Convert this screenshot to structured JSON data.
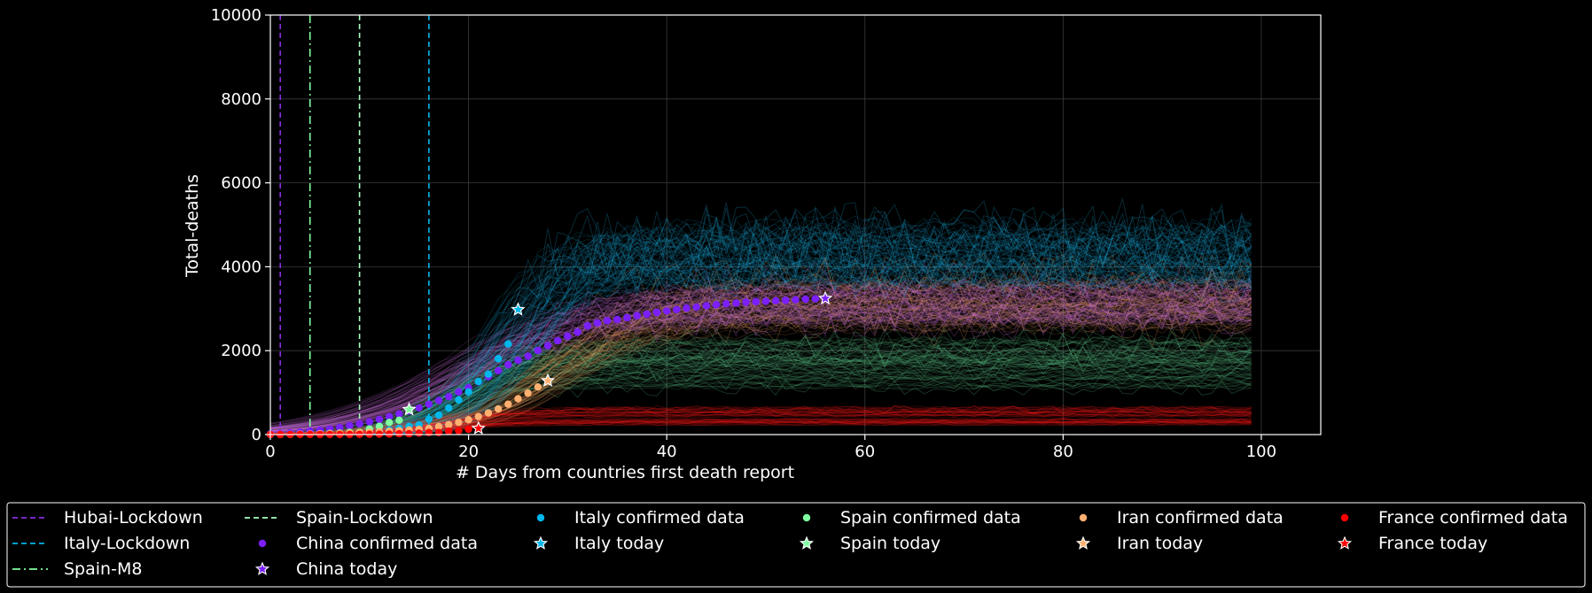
{
  "chart_data": {
    "type": "line",
    "xlabel": "# Days from countries first death report",
    "ylabel": "Total-deaths",
    "xlim": [
      0,
      106
    ],
    "ylim": [
      0,
      10000
    ],
    "x_ticks": [
      0,
      20,
      40,
      60,
      80,
      100
    ],
    "y_ticks": [
      0,
      2000,
      4000,
      6000,
      8000,
      10000
    ],
    "grid": true,
    "legend_placement": "bottom",
    "background": "#000000",
    "lockdowns": [
      {
        "name": "Hubai-Lockdown",
        "x": 1,
        "color": "#8a2be2",
        "dash": "dashed"
      },
      {
        "name": "Italy-Lockdown",
        "x": 16,
        "color": "#00b7eb",
        "dash": "dashed"
      },
      {
        "name": "Spain-M8",
        "x": 4,
        "color": "#7fffa0",
        "dash": "dashdot"
      },
      {
        "name": "Spain-Lockdown",
        "x": 9,
        "color": "#a8ffc0",
        "dash": "dashed"
      }
    ],
    "series": [
      {
        "name": "China confirmed data",
        "today_name": "China today",
        "color": "#7b1fff",
        "sim_color": "#d070e0",
        "plateau_range": [
          2700,
          3600
        ],
        "x": [
          0,
          1,
          2,
          3,
          4,
          5,
          6,
          7,
          8,
          9,
          10,
          11,
          12,
          13,
          14,
          15,
          16,
          17,
          18,
          19,
          20,
          21,
          22,
          23,
          24,
          25,
          26,
          27,
          28,
          29,
          30,
          31,
          32,
          33,
          34,
          35,
          36,
          37,
          38,
          39,
          40,
          41,
          42,
          43,
          44,
          45,
          46,
          47,
          48,
          49,
          50,
          51,
          52,
          53,
          54,
          55,
          56
        ],
        "values": [
          17,
          25,
          41,
          56,
          80,
          106,
          132,
          170,
          213,
          259,
          304,
          361,
          425,
          490,
          563,
          637,
          722,
          811,
          905,
          1016,
          1113,
          1259,
          1380,
          1523,
          1665,
          1770,
          1868,
          2004,
          2118,
          2236,
          2345,
          2442,
          2592,
          2663,
          2715,
          2744,
          2788,
          2835,
          2870,
          2912,
          2943,
          2981,
          3012,
          3042,
          3070,
          3097,
          3119,
          3136,
          3158,
          3169,
          3176,
          3189,
          3199,
          3213,
          3226,
          3237,
          3245
        ]
      },
      {
        "name": "Italy confirmed data",
        "today_name": "Italy today",
        "color": "#00b7eb",
        "sim_color": "#1aa8d8",
        "plateau_range": [
          3600,
          5000
        ],
        "x": [
          0,
          1,
          2,
          3,
          4,
          5,
          6,
          7,
          8,
          9,
          10,
          11,
          12,
          13,
          14,
          15,
          16,
          17,
          18,
          19,
          20,
          21,
          22,
          23,
          24,
          25
        ],
        "values": [
          1,
          2,
          3,
          7,
          10,
          12,
          17,
          21,
          29,
          34,
          52,
          79,
          107,
          148,
          197,
          233,
          366,
          463,
          631,
          827,
          1016,
          1266,
          1441,
          1809,
          2158,
          2978
        ]
      },
      {
        "name": "Spain confirmed data",
        "today_name": "Spain today",
        "color": "#7fffa0",
        "sim_color": "#5cc486",
        "plateau_range": [
          1050,
          2300
        ],
        "x": [
          0,
          1,
          2,
          3,
          4,
          5,
          6,
          7,
          8,
          9,
          10,
          11,
          12,
          13,
          14
        ],
        "values": [
          1,
          3,
          5,
          8,
          10,
          17,
          28,
          35,
          54,
          55,
          133,
          195,
          289,
          342,
          598
        ]
      },
      {
        "name": "Iran confirmed data",
        "today_name": "Iran today",
        "color": "#ffb070",
        "sim_color": "#f0a060",
        "plateau_range": [
          2500,
          3700
        ],
        "x": [
          0,
          1,
          2,
          3,
          4,
          5,
          6,
          7,
          8,
          9,
          10,
          11,
          12,
          13,
          14,
          15,
          16,
          17,
          18,
          19,
          20,
          21,
          22,
          23,
          24,
          25,
          26,
          27,
          28
        ],
        "values": [
          2,
          4,
          5,
          8,
          12,
          16,
          19,
          26,
          34,
          43,
          54,
          66,
          77,
          92,
          107,
          124,
          145,
          194,
          237,
          291,
          354,
          429,
          514,
          611,
          724,
          853,
          988,
          1135,
          1284
        ]
      },
      {
        "name": "France confirmed data",
        "today_name": "France today",
        "color": "#ff0000",
        "sim_color": "#ff1a1a",
        "plateau_range": [
          220,
          650
        ],
        "x": [
          0,
          1,
          2,
          3,
          4,
          5,
          6,
          7,
          8,
          9,
          10,
          11,
          12,
          13,
          14,
          15,
          16,
          17,
          18,
          19,
          20,
          21
        ],
        "values": [
          1,
          1,
          1,
          1,
          1,
          2,
          2,
          2,
          3,
          4,
          7,
          9,
          11,
          19,
          19,
          33,
          48,
          48,
          79,
          91,
          127,
          148
        ]
      }
    ]
  }
}
